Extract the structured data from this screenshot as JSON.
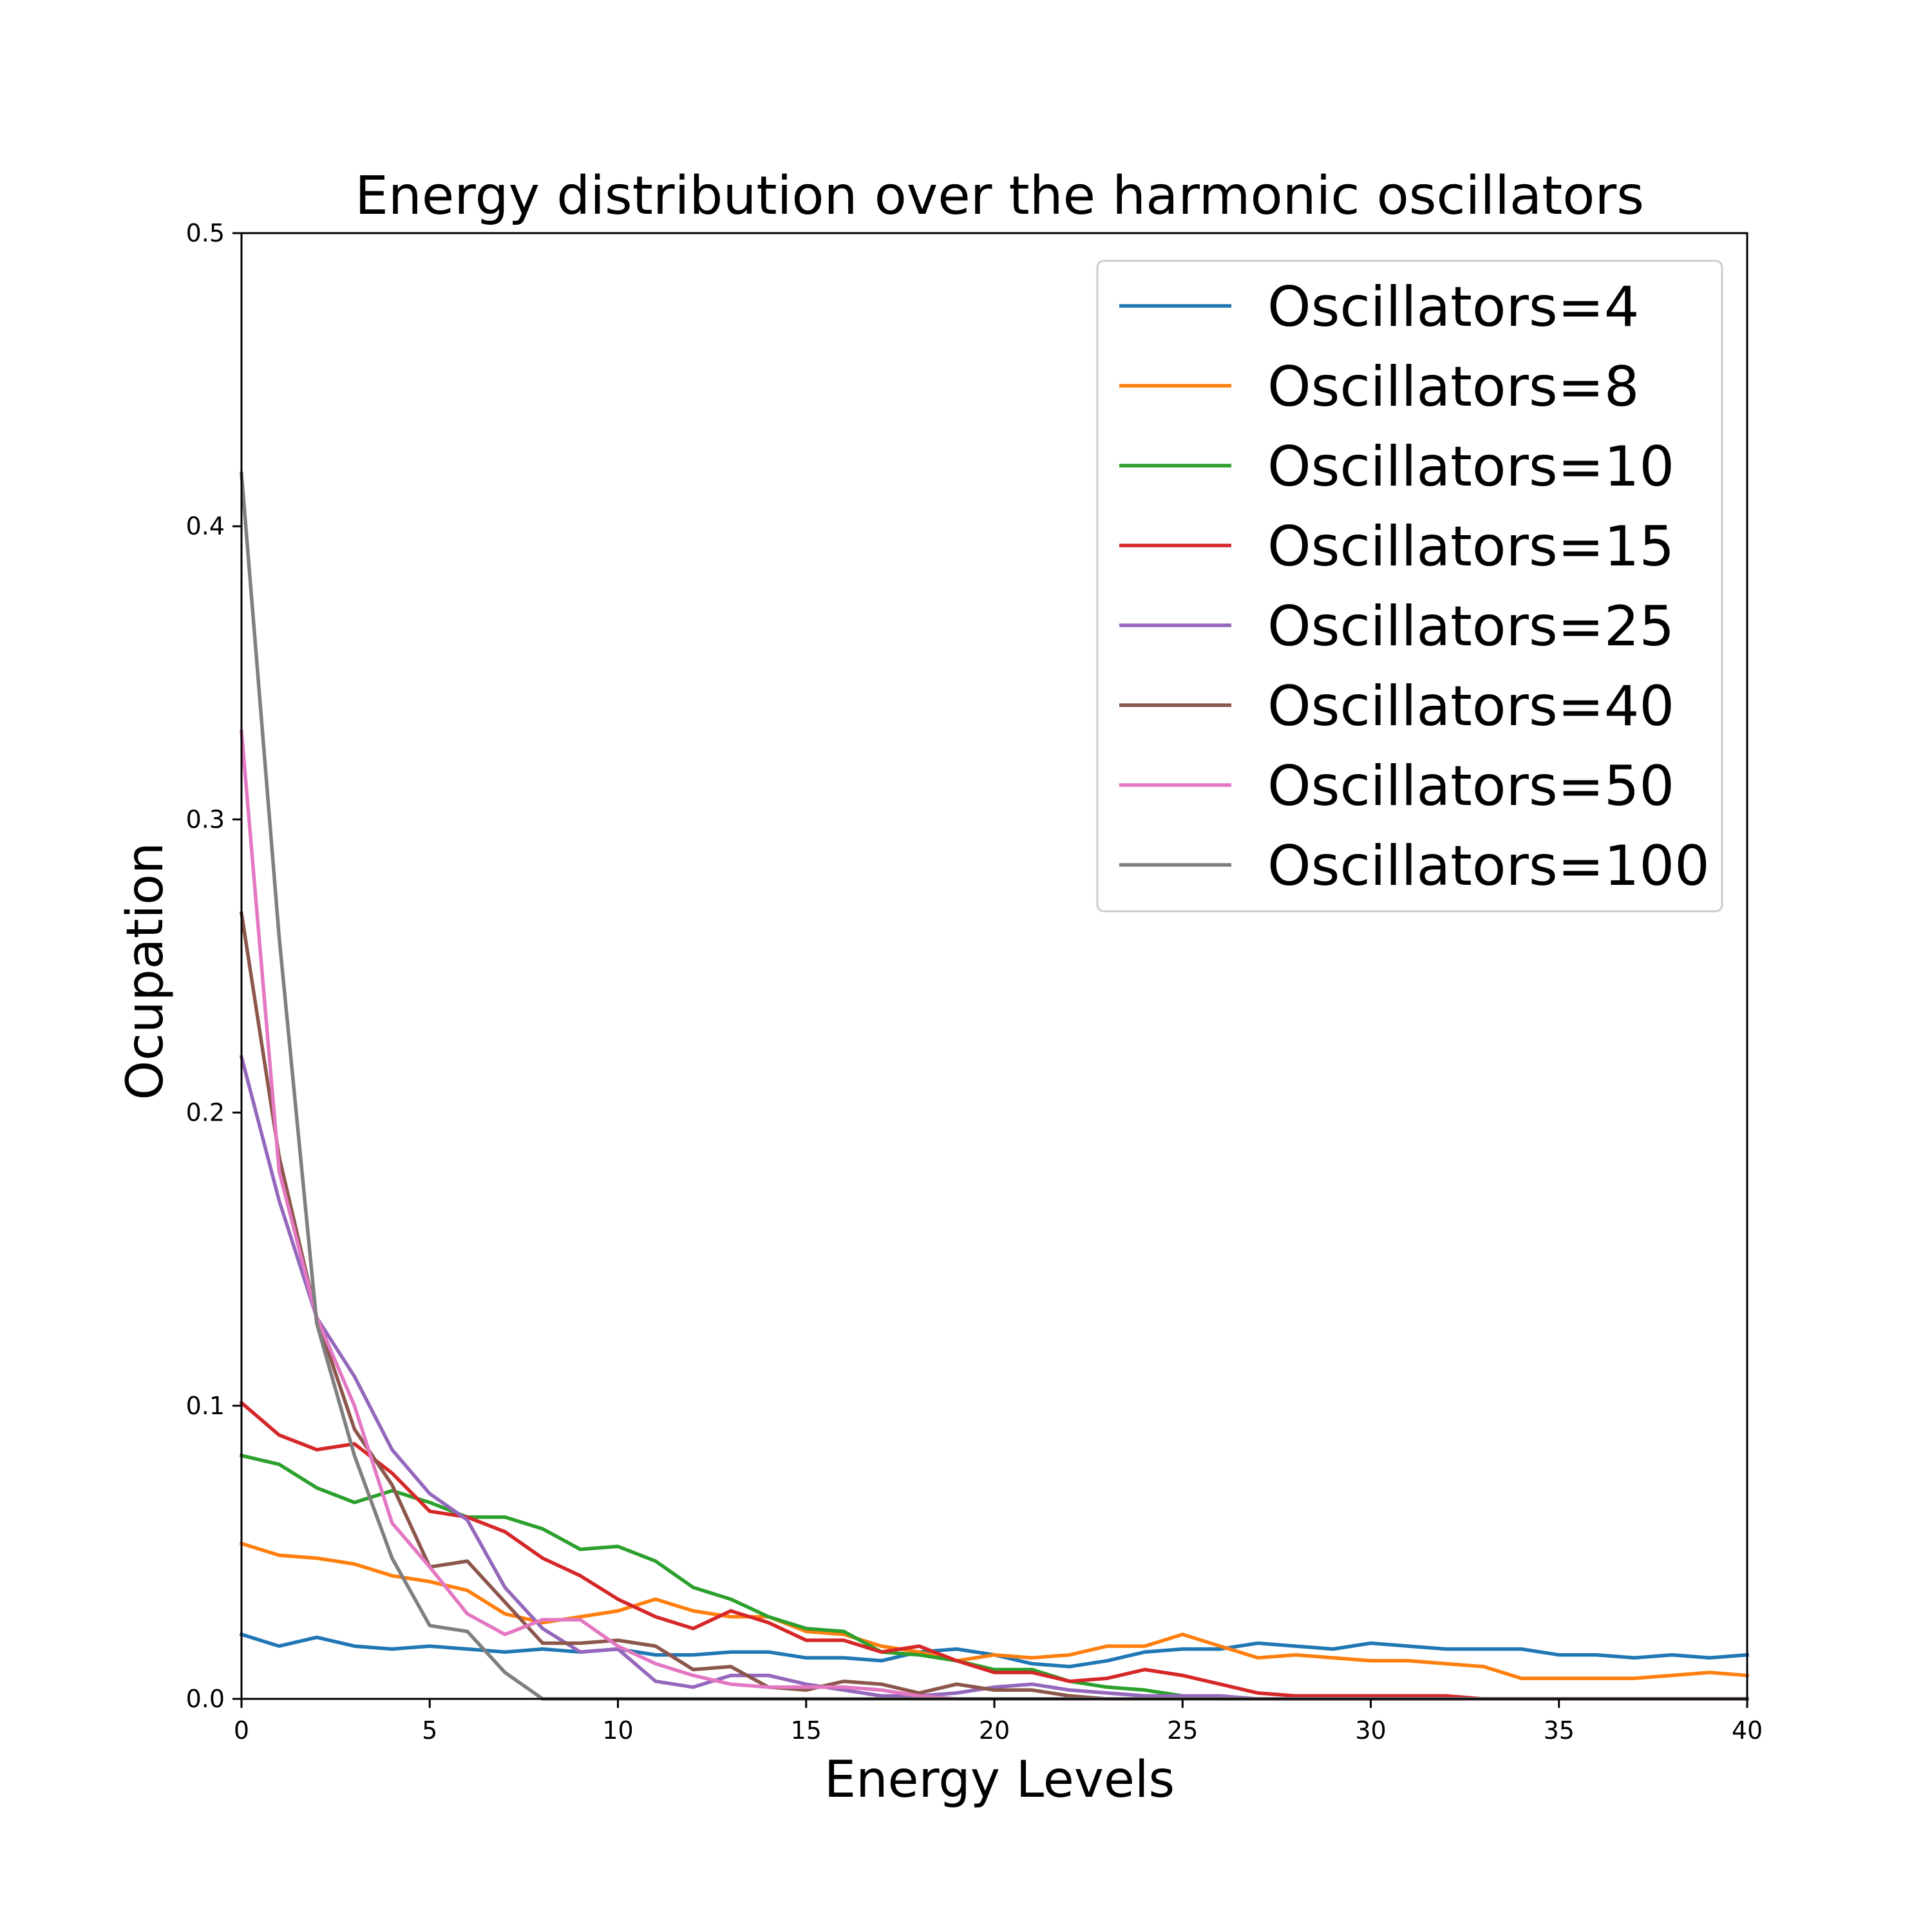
{
  "chart_data": {
    "type": "line",
    "title": "Energy distribution over the harmonic oscillators",
    "xlabel": "Energy Levels",
    "ylabel": "Ocupation",
    "xlim": [
      0,
      40
    ],
    "ylim": [
      0,
      0.5
    ],
    "x_ticks": [
      0,
      5,
      10,
      15,
      20,
      25,
      30,
      35,
      40
    ],
    "y_ticks": [
      0.0,
      0.1,
      0.2,
      0.3,
      0.4,
      0.5
    ],
    "x_tick_labels": [
      "0",
      "5",
      "10",
      "15",
      "20",
      "25",
      "30",
      "35",
      "40"
    ],
    "y_tick_labels": [
      "0.0",
      "0.1",
      "0.2",
      "0.3",
      "0.4",
      "0.5"
    ],
    "grid": false,
    "legend_position": "top-right",
    "x": [
      0,
      1,
      2,
      3,
      4,
      5,
      6,
      7,
      8,
      9,
      10,
      11,
      12,
      13,
      14,
      15,
      16,
      17,
      18,
      19,
      20,
      21,
      22,
      23,
      24,
      25,
      26,
      27,
      28,
      29,
      30,
      31,
      32,
      33,
      34,
      35,
      36,
      37,
      38,
      39,
      40
    ],
    "series": [
      {
        "name": "Oscillators=4",
        "color": "#1f77b4",
        "values": [
          0.022,
          0.018,
          0.021,
          0.018,
          0.017,
          0.018,
          0.017,
          0.016,
          0.017,
          0.016,
          0.017,
          0.015,
          0.015,
          0.016,
          0.016,
          0.014,
          0.014,
          0.013,
          0.016,
          0.017,
          0.015,
          0.012,
          0.011,
          0.013,
          0.016,
          0.017,
          0.017,
          0.019,
          0.018,
          0.017,
          0.019,
          0.018,
          0.017,
          0.017,
          0.017,
          0.015,
          0.015,
          0.014,
          0.015,
          0.014,
          0.015
        ]
      },
      {
        "name": "Oscillators=8",
        "color": "#ff7f0e",
        "values": [
          0.053,
          0.049,
          0.048,
          0.046,
          0.042,
          0.04,
          0.037,
          0.029,
          0.026,
          0.028,
          0.03,
          0.034,
          0.03,
          0.028,
          0.028,
          0.023,
          0.022,
          0.018,
          0.016,
          0.013,
          0.015,
          0.014,
          0.015,
          0.018,
          0.018,
          0.022,
          0.018,
          0.014,
          0.015,
          0.014,
          0.013,
          0.013,
          0.012,
          0.011,
          0.007,
          0.007,
          0.007,
          0.007,
          0.008,
          0.009,
          0.008
        ]
      },
      {
        "name": "Oscillators=10",
        "color": "#2ca02c",
        "values": [
          0.083,
          0.08,
          0.072,
          0.067,
          0.071,
          0.067,
          0.062,
          0.062,
          0.058,
          0.051,
          0.052,
          0.047,
          0.038,
          0.034,
          0.028,
          0.024,
          0.023,
          0.016,
          0.015,
          0.013,
          0.01,
          0.01,
          0.006,
          0.004,
          0.003,
          0.001,
          0.0,
          0.0,
          0.0,
          0.0,
          0.0,
          0.0,
          0.0,
          0.0,
          0.0,
          0.0,
          0.0,
          0.0,
          0.0,
          0.0,
          0.0
        ]
      },
      {
        "name": "Oscillators=15",
        "color": "#d62728",
        "values": [
          0.101,
          0.09,
          0.085,
          0.087,
          0.077,
          0.064,
          0.062,
          0.057,
          0.048,
          0.042,
          0.034,
          0.028,
          0.024,
          0.03,
          0.026,
          0.02,
          0.02,
          0.016,
          0.018,
          0.013,
          0.009,
          0.009,
          0.006,
          0.007,
          0.01,
          0.008,
          0.005,
          0.002,
          0.001,
          0.001,
          0.001,
          0.001,
          0.001,
          0.0,
          0.0,
          0.0,
          0.0,
          0.0,
          0.0,
          0.0,
          0.0
        ]
      },
      {
        "name": "Oscillators=25",
        "color": "#9467bd",
        "values": [
          0.219,
          0.17,
          0.13,
          0.11,
          0.085,
          0.07,
          0.061,
          0.038,
          0.024,
          0.016,
          0.017,
          0.006,
          0.004,
          0.008,
          0.008,
          0.005,
          0.003,
          0.001,
          0.001,
          0.002,
          0.004,
          0.005,
          0.003,
          0.002,
          0.001,
          0.001,
          0.001,
          0.0,
          0.0,
          0.0,
          0.0,
          0.0,
          0.0,
          0.0,
          0.0,
          0.0,
          0.0,
          0.0,
          0.0,
          0.0,
          0.0
        ]
      },
      {
        "name": "Oscillators=40",
        "color": "#8c564b",
        "values": [
          0.268,
          0.185,
          0.13,
          0.092,
          0.073,
          0.045,
          0.047,
          0.033,
          0.019,
          0.019,
          0.02,
          0.018,
          0.01,
          0.011,
          0.004,
          0.003,
          0.006,
          0.005,
          0.002,
          0.005,
          0.003,
          0.003,
          0.001,
          0.0,
          0.0,
          0.0,
          0.0,
          0.0,
          0.0,
          0.0,
          0.0,
          0.0,
          0.0,
          0.0,
          0.0,
          0.0,
          0.0,
          0.0,
          0.0,
          0.0,
          0.0
        ]
      },
      {
        "name": "Oscillators=50",
        "color": "#e377c2",
        "values": [
          0.33,
          0.18,
          0.13,
          0.1,
          0.06,
          0.045,
          0.029,
          0.022,
          0.027,
          0.027,
          0.018,
          0.012,
          0.008,
          0.005,
          0.004,
          0.004,
          0.004,
          0.003,
          0.001,
          0.0,
          0.0,
          0.0,
          0.0,
          0.0,
          0.0,
          0.0,
          0.0,
          0.0,
          0.0,
          0.0,
          0.0,
          0.0,
          0.0,
          0.0,
          0.0,
          0.0,
          0.0,
          0.0,
          0.0,
          0.0,
          0.0
        ]
      },
      {
        "name": "Oscillators=100",
        "color": "#7f7f7f",
        "values": [
          0.418,
          0.26,
          0.128,
          0.083,
          0.048,
          0.025,
          0.023,
          0.009,
          0.0,
          0.0,
          0.0,
          0.0,
          0.0,
          0.0,
          0.0,
          0.0,
          0.0,
          0.0,
          0.0,
          0.0,
          0.0,
          0.0,
          0.0,
          0.0,
          0.0,
          0.0,
          0.0,
          0.0,
          0.0,
          0.0,
          0.0,
          0.0,
          0.0,
          0.0,
          0.0,
          0.0,
          0.0,
          0.0,
          0.0,
          0.0,
          0.0
        ]
      }
    ]
  }
}
